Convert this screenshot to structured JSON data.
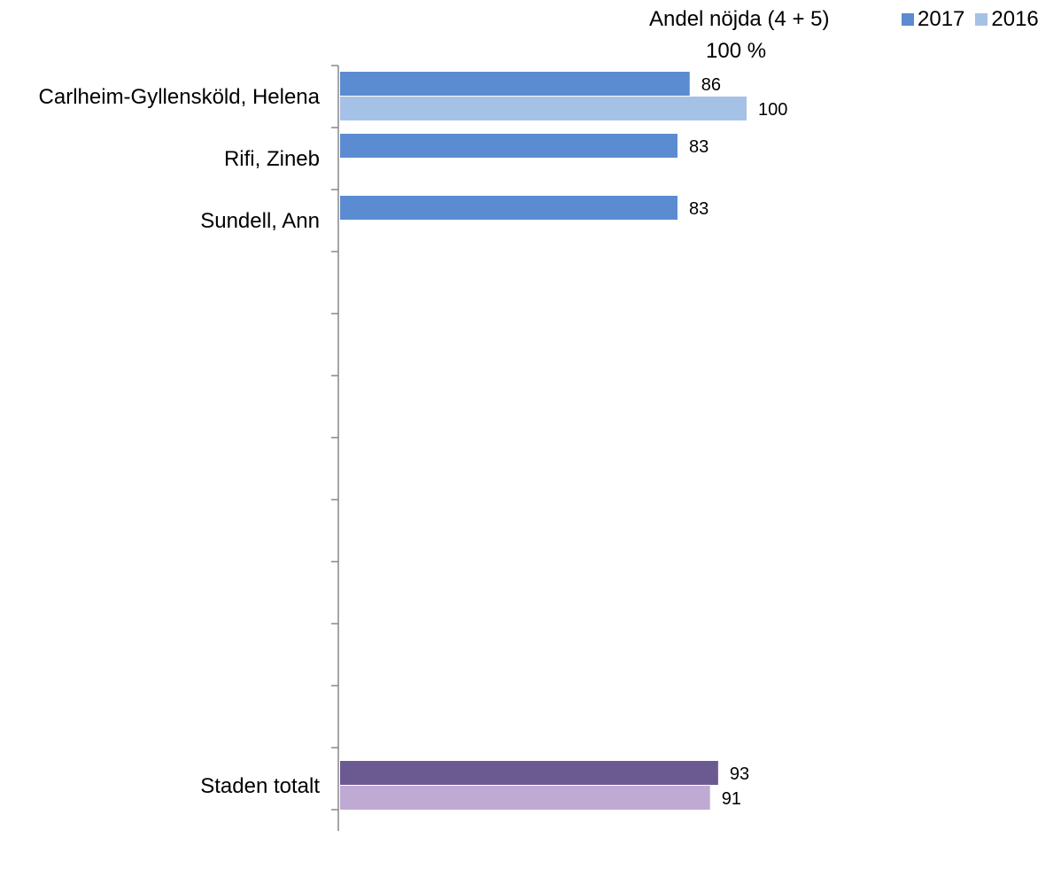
{
  "chart_data": {
    "type": "bar",
    "orientation": "horizontal",
    "title": "",
    "header_label": "Andel nöjda (4 + 5)",
    "axis_max_label": "100 %",
    "xlim": [
      0,
      100
    ],
    "grid": false,
    "legend_placement": "top-right",
    "categories": [
      "Carlheim-Gyllensköld, Helena",
      "Rifi, Zineb",
      "Sundell, Ann",
      "",
      "",
      "",
      "",
      "",
      "",
      "",
      "",
      "",
      "Staden totalt"
    ],
    "series": [
      {
        "name": "2017",
        "color": "#5b8bd0",
        "values": [
          86,
          83,
          83,
          null,
          null,
          null,
          null,
          null,
          null,
          null,
          null,
          null,
          93
        ],
        "color_overrides": {
          "12": "#6b5a92"
        }
      },
      {
        "name": "2016",
        "color": "#a6c1e6",
        "values": [
          100,
          null,
          null,
          null,
          null,
          null,
          null,
          null,
          null,
          null,
          null,
          null,
          91
        ],
        "color_overrides": {
          "12": "#bfaad3"
        }
      }
    ]
  }
}
